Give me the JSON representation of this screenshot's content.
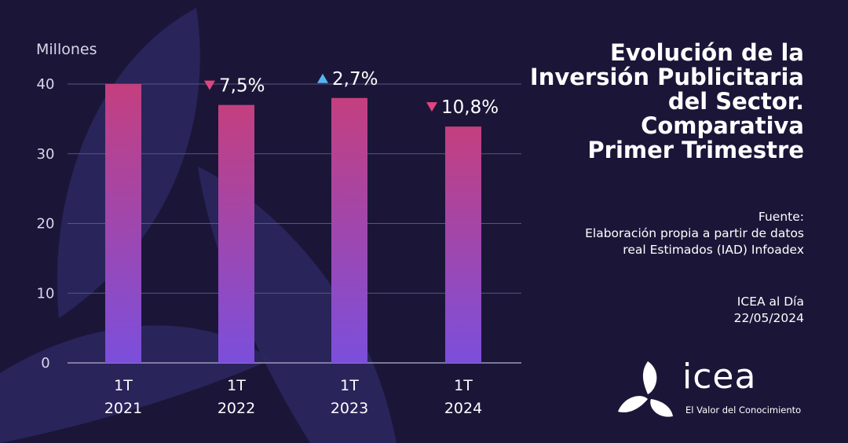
{
  "chart_data": {
    "type": "bar",
    "title": "Evolución de la Inversión Publicitaria del Sector. Comparativa Primer Trimestre",
    "ylabel": "Millones",
    "ylim": [
      0,
      40
    ],
    "yticks": [
      0,
      10,
      20,
      30,
      40
    ],
    "categories": [
      {
        "line1": "1T",
        "line2": "2021"
      },
      {
        "line1": "1T",
        "line2": "2022"
      },
      {
        "line1": "1T",
        "line2": "2023"
      },
      {
        "line1": "1T",
        "line2": "2024"
      }
    ],
    "values": [
      40,
      37,
      38,
      33.9
    ],
    "grid": true,
    "annotations": [
      null,
      {
        "text": "7,5%",
        "direction": "down",
        "color": "#e0457f"
      },
      {
        "text": "2,7%",
        "direction": "up",
        "color": "#59b3f2"
      },
      {
        "text": "10,8%",
        "direction": "down",
        "color": "#e0457f"
      }
    ],
    "bar_gradient": {
      "top": "#c43f7f",
      "bottom": "#7b4fdc"
    }
  },
  "header": {
    "title_lines": [
      "Evolución de la",
      "Inversión Publicitaria",
      "del Sector.",
      "Comparativa",
      "Primer Trimestre"
    ]
  },
  "source": {
    "label": "Fuente:",
    "line1": "Elaboración propia a partir de datos",
    "line2": "real Estimados (IAD) Infoadex"
  },
  "credit": {
    "line1": "ICEA al Día",
    "line2": "22/05/2024"
  },
  "logo": {
    "word": "icea",
    "tagline": "El Valor del Conocimiento"
  }
}
